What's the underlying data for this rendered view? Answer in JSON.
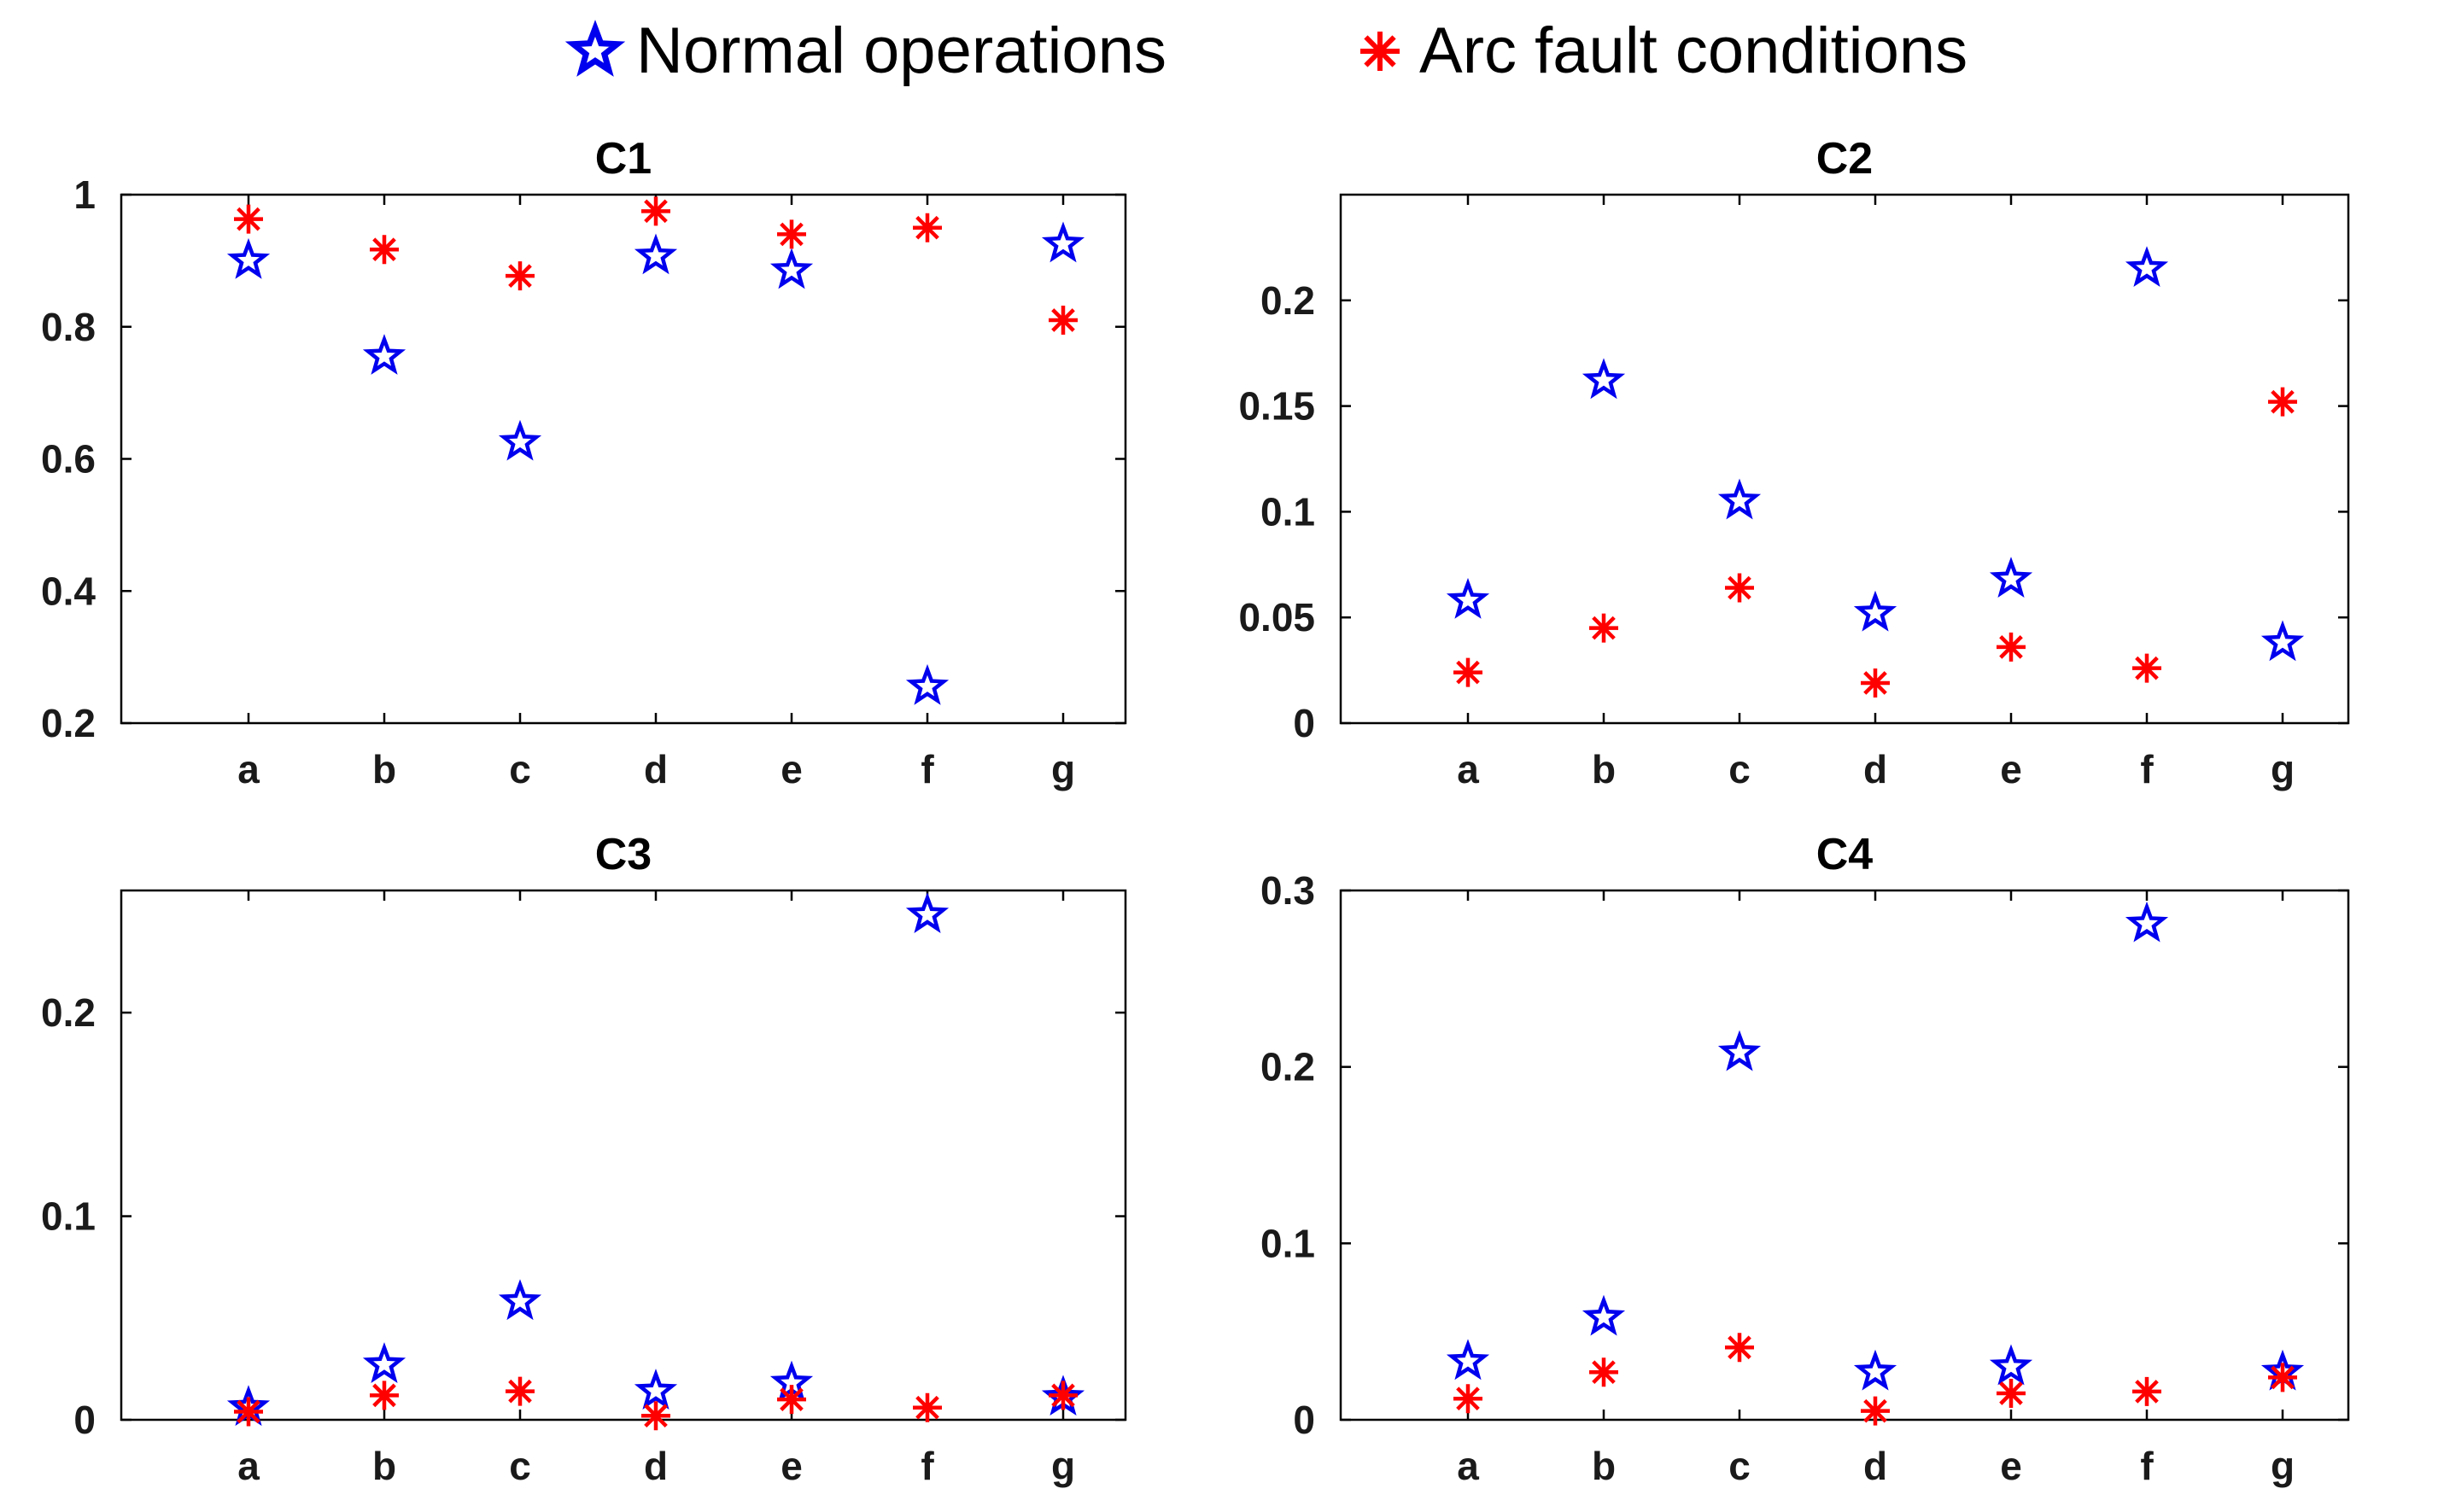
{
  "legend": {
    "normal": {
      "label": "Normal operations",
      "color": "#0000ee",
      "marker": "star-icon"
    },
    "arc": {
      "label": "Arc fault conditions",
      "color": "#ff0000",
      "marker": "asterisk-icon"
    }
  },
  "chart_data": [
    {
      "type": "scatter",
      "title": "C1",
      "categories": [
        "a",
        "b",
        "c",
        "d",
        "e",
        "f",
        "g"
      ],
      "ylim": [
        0.2,
        1.0
      ],
      "yticks": [
        0.2,
        0.4,
        0.6,
        0.8,
        1
      ],
      "ytick_labels": [
        "0.2",
        "0.4",
        "0.6",
        "0.8",
        "1"
      ],
      "series": [
        {
          "name": "Normal operations",
          "values": [
            0.9,
            0.755,
            0.625,
            0.907,
            0.885,
            0.255,
            0.925
          ]
        },
        {
          "name": "Arc fault conditions",
          "values": [
            0.963,
            0.917,
            0.877,
            0.975,
            0.94,
            0.95,
            0.81
          ]
        }
      ]
    },
    {
      "type": "scatter",
      "title": "C2",
      "categories": [
        "a",
        "b",
        "c",
        "d",
        "e",
        "f",
        "g"
      ],
      "ylim": [
        0,
        0.25
      ],
      "yticks": [
        0,
        0.05,
        0.1,
        0.15,
        0.2
      ],
      "ytick_labels": [
        "0",
        "0.05",
        "0.1",
        "0.15",
        "0.2"
      ],
      "series": [
        {
          "name": "Normal operations",
          "values": [
            0.058,
            0.162,
            0.105,
            0.052,
            0.068,
            0.215,
            0.038
          ]
        },
        {
          "name": "Arc fault conditions",
          "values": [
            0.024,
            0.045,
            0.064,
            0.019,
            0.036,
            0.026,
            0.152
          ]
        }
      ]
    },
    {
      "type": "scatter",
      "title": "C3",
      "categories": [
        "a",
        "b",
        "c",
        "d",
        "e",
        "f",
        "g"
      ],
      "ylim": [
        0,
        0.26
      ],
      "yticks": [
        0,
        0.1,
        0.2
      ],
      "ytick_labels": [
        "0",
        "0.1",
        "0.2"
      ],
      "series": [
        {
          "name": "Normal operations",
          "values": [
            0.006,
            0.027,
            0.058,
            0.014,
            0.018,
            0.248,
            0.011
          ]
        },
        {
          "name": "Arc fault conditions",
          "values": [
            0.004,
            0.012,
            0.014,
            0.002,
            0.01,
            0.006,
            0.012
          ]
        }
      ]
    },
    {
      "type": "scatter",
      "title": "C4",
      "categories": [
        "a",
        "b",
        "c",
        "d",
        "e",
        "f",
        "g"
      ],
      "ylim": [
        0,
        0.3
      ],
      "yticks": [
        0,
        0.1,
        0.2,
        0.3
      ],
      "ytick_labels": [
        "0",
        "0.1",
        "0.2",
        "0.3"
      ],
      "series": [
        {
          "name": "Normal operations",
          "values": [
            0.033,
            0.058,
            0.208,
            0.027,
            0.03,
            0.281,
            0.027
          ]
        },
        {
          "name": "Arc fault conditions",
          "values": [
            0.012,
            0.027,
            0.041,
            0.005,
            0.015,
            0.016,
            0.024
          ]
        }
      ]
    }
  ]
}
